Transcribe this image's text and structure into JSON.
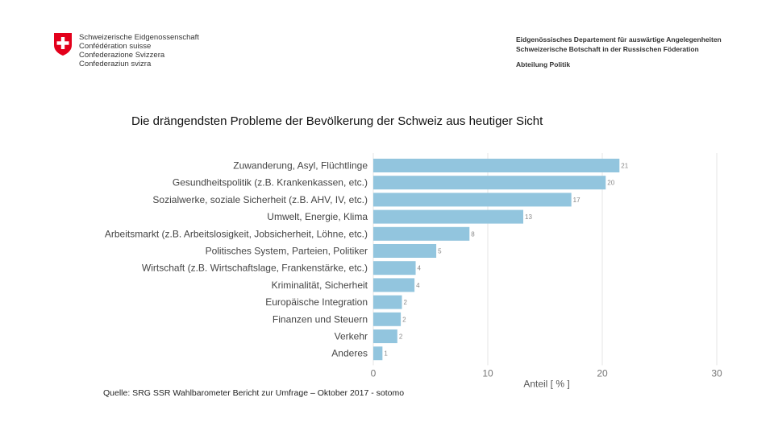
{
  "header": {
    "languages": [
      "Schweizerische Eidgenossenschaft",
      "Confédération suisse",
      "Confederazione Svizzera",
      "Confederaziun svizra"
    ],
    "department": "Eidgenössisches Departement für auswärtige Angelegenheiten",
    "embassy": "Schweizerische Botschaft in der Russischen Föderation",
    "division": "Abteilung Politik"
  },
  "title": "Die drängendsten Probleme der Bevölkerung der Schweiz aus heutiger Sicht",
  "source": "Quelle: SRG SSR Wahlbarometer Bericht zur Umfrage – Oktober 2017 - sotomo",
  "colors": {
    "bar": "#92c5de",
    "flag_red": "#e3001b",
    "grid": "#e6e6e6"
  },
  "chart_data": {
    "type": "bar",
    "orientation": "horizontal",
    "categories": [
      "Zuwanderung, Asyl, Flüchtlinge",
      "Gesundheitspolitik (z.B. Krankenkassen, etc.)",
      "Sozialwerke, soziale Sicherheit (z.B. AHV, IV, etc.)",
      "Umwelt, Energie, Klima",
      "Arbeitsmarkt (z.B. Arbeitslosigkeit, Jobsicherheit, Löhne, etc.)",
      "Politisches System, Parteien, Politiker",
      "Wirtschaft (z.B. Wirtschaftslage, Frankenstärke, etc.)",
      "Kriminalität, Sicherheit",
      "Europäische Integration",
      "Finanzen und Steuern",
      "Verkehr",
      "Anderes"
    ],
    "values": [
      21.5,
      20.3,
      17.3,
      13.1,
      8.4,
      5.5,
      3.7,
      3.6,
      2.5,
      2.4,
      2.1,
      0.8
    ],
    "value_labels": [
      "21",
      "20",
      "17",
      "13",
      "8",
      "5",
      "4",
      "4",
      "2",
      "2",
      "2",
      "1"
    ],
    "xticks": [
      0,
      10,
      20,
      30
    ],
    "xlim": [
      0,
      30
    ],
    "xlabel": "Anteil [ % ]",
    "grid": "vertical"
  }
}
